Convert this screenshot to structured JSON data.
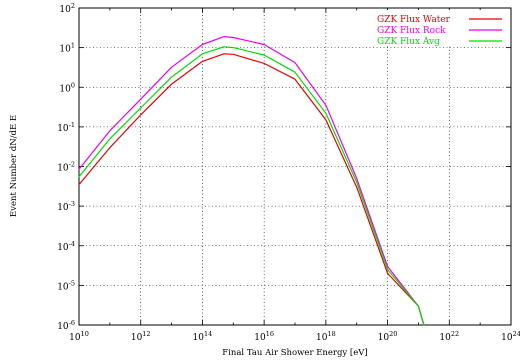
{
  "chart_data": {
    "type": "line",
    "title": "",
    "xlabel": "Final Tau Air Shower Energy  [eV]",
    "ylabel": "Event Number dN/dE E",
    "xscale": "log",
    "yscale": "log",
    "xlim": [
      10000000000.0,
      1e+24
    ],
    "ylim": [
      1e-06,
      100
    ],
    "grid": true,
    "legend": "top-right",
    "x_ticks": [
      {
        "base": "10",
        "exp": "10"
      },
      {
        "base": "10",
        "exp": "12"
      },
      {
        "base": "10",
        "exp": "14"
      },
      {
        "base": "10",
        "exp": "16"
      },
      {
        "base": "10",
        "exp": "18"
      },
      {
        "base": "10",
        "exp": "20"
      },
      {
        "base": "10",
        "exp": "22"
      },
      {
        "base": "10",
        "exp": "24"
      }
    ],
    "y_ticks": [
      {
        "base": "10",
        "exp": "-6"
      },
      {
        "base": "10",
        "exp": "-5"
      },
      {
        "base": "10",
        "exp": "-4"
      },
      {
        "base": "10",
        "exp": "-3"
      },
      {
        "base": "10",
        "exp": "-2"
      },
      {
        "base": "10",
        "exp": "-1"
      },
      {
        "base": "10",
        "exp": "0"
      },
      {
        "base": "10",
        "exp": "1"
      },
      {
        "base": "10",
        "exp": "2"
      }
    ],
    "x": [
      10000000000.0,
      100000000000.0,
      1000000000000.0,
      10000000000000.0,
      100000000000000.0,
      500000000000000.0,
      1000000000000000.0,
      1e+16,
      1e+17,
      1e+18,
      1e+19,
      1e+20,
      1e+21,
      1.5e+21
    ],
    "series": [
      {
        "name": "GZK Flux Water",
        "color": "#ee0000",
        "values": [
          0.0035,
          0.03,
          0.2,
          1.2,
          4.5,
          7.0,
          6.8,
          4.0,
          1.6,
          0.15,
          0.003,
          2e-05,
          3e-06,
          1e-06
        ]
      },
      {
        "name": "GZK Flux Rock",
        "color": "#ee00ee",
        "values": [
          0.0085,
          0.08,
          0.5,
          3.2,
          12,
          19,
          18,
          12,
          4.2,
          0.35,
          0.005,
          3e-05,
          3e-06,
          1e-06
        ]
      },
      {
        "name": "GZK Flux Avg",
        "color": "#00dd00",
        "values": [
          0.0055,
          0.05,
          0.3,
          1.8,
          7.0,
          10.5,
          10,
          6.5,
          2.4,
          0.22,
          0.004,
          2.5e-05,
          3e-06,
          1e-06
        ]
      }
    ]
  }
}
